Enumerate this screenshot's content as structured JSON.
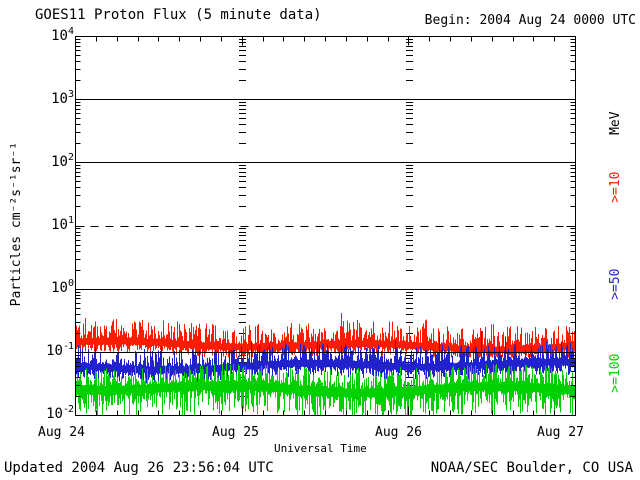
{
  "footer": {
    "updated": "Updated 2004 Aug 26 23:56:04 UTC",
    "credit": "NOAA/SEC Boulder, CO USA"
  },
  "chart_data": {
    "type": "line",
    "title": "GOES11 Proton Flux (5 minute data)",
    "begin_label": "Begin: 2004 Aug 24 0000 UTC",
    "xlabel": "Universal Time",
    "ylabel": "Particles cm⁻²s⁻¹sr⁻¹",
    "right_axis_title": "MeV",
    "x_ticks": [
      "Aug 24",
      "Aug 25",
      "Aug 26",
      "Aug 27"
    ],
    "y_ticks": [
      {
        "base": "10",
        "exp": "4"
      },
      {
        "base": "10",
        "exp": "3"
      },
      {
        "base": "10",
        "exp": "2"
      },
      {
        "base": "10",
        "exp": "1"
      },
      {
        "base": "10",
        "exp": "0"
      },
      {
        "base": "10",
        "exp": "-1"
      },
      {
        "base": "10",
        "exp": "-2"
      }
    ],
    "y_scale": "log10",
    "ylim": [
      0.01,
      10000
    ],
    "x_days": 3,
    "minor_x_ticks_hours": 3,
    "grid": {
      "solid_lines_log10": [
        3,
        2,
        0,
        -1
      ],
      "dashed_lines_log10": [
        1
      ],
      "day_boundary_ghost_ticks": true
    },
    "seed": 20040824,
    "samples_per_day_columns": 167,
    "series": [
      {
        "name": "Protons >= 10 MeV",
        "label": ">=10",
        "color": "#fe1c00",
        "log10_median": -0.9,
        "log10_min": -1.08,
        "log10_max": -0.3,
        "gen": {
          "top_min": 0.06,
          "top_span": 0.32,
          "bot_min": 0.04,
          "bot_span": 0.13,
          "spike_p": 0.06,
          "spike_amp": 0.22,
          "drift1": 0.04,
          "drift2": 0.03,
          "phase": 0.7
        }
      },
      {
        "name": "Protons >= 50 MeV",
        "label": ">=50",
        "color": "#2222cc",
        "log10_median": -1.22,
        "log10_min": -1.52,
        "log10_max": -0.66,
        "gen": {
          "top_min": 0.05,
          "top_span": 0.28,
          "bot_min": 0.05,
          "bot_span": 0.17,
          "spike_p": 0.05,
          "spike_amp": 0.26,
          "drift1": 0.04,
          "drift2": 0.03,
          "phase": 2.3
        }
      },
      {
        "name": "Protons >= 100 MeV",
        "label": ">=100",
        "color": "#00cf00",
        "log10_median": -1.56,
        "log10_min": -2.0,
        "log10_max": -1.02,
        "gen": {
          "top_min": 0.06,
          "top_span": 0.3,
          "bot_min": 0.07,
          "bot_span": 0.4,
          "spike_p": 0.04,
          "spike_amp": 0.22,
          "drift1": 0.05,
          "drift2": 0.03,
          "phase": 4.1
        }
      }
    ]
  }
}
